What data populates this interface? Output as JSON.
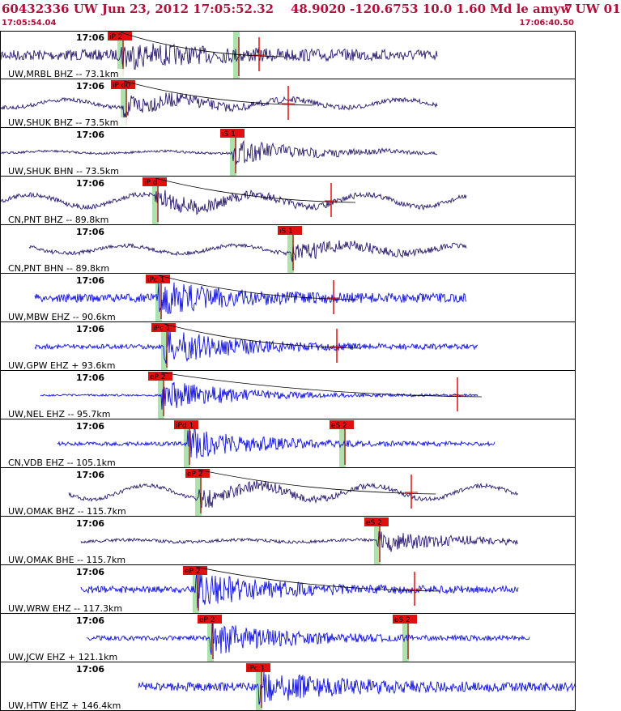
{
  "header": {
    "title": "60432336 UW Jun 23, 2012 17:05:52.32    48.9020 -120.6753 10.0 1.60 Md le amyw UW 01",
    "title_suffix": "7",
    "start_time": "17:05:54.04",
    "end_time": "17:06:40.50"
  },
  "colors": {
    "header_text": "#b0103a",
    "trace_broadband": "#2a1a6e",
    "trace_short_period": "#1010e0",
    "pick_label_bg": "#e01010",
    "pick_band": "#9fdc9f",
    "pick_line": "#b00000",
    "border": "#000000"
  },
  "traces": [
    {
      "label": "UW,MRBL BHZ -- 73.1km",
      "tick": "17:06",
      "kind": "bb",
      "start": 0.0,
      "end": 0.76,
      "noise": 0.28,
      "sig": 0.55,
      "wave": 0.0,
      "picks": [
        {
          "text": "iP 2",
          "pos": 0.21
        },
        {
          "text": "",
          "pos": 0.41
        }
      ],
      "marker": 0.45
    },
    {
      "label": "UW,SHUK BHZ -- 73.5km",
      "tick": "17:06",
      "kind": "bb",
      "start": 0.0,
      "end": 0.76,
      "noise": 0.1,
      "sig": 0.55,
      "wave": 0.35,
      "picks": [
        {
          "text": "iP d0",
          "pos": 0.215
        }
      ],
      "marker": 0.5
    },
    {
      "label": "UW,SHUK BHN -- 73.5km",
      "tick": "17:06",
      "kind": "bb",
      "start": 0.0,
      "end": 0.76,
      "noise": 0.06,
      "sig": 0.6,
      "wave": 0.1,
      "picks": [
        {
          "text": "iS 1",
          "pos": 0.405
        }
      ],
      "marker": -1
    },
    {
      "label": "CN,PNT BHZ -- 89.8km",
      "tick": "17:06",
      "kind": "bb",
      "start": 0.0,
      "end": 0.81,
      "noise": 0.12,
      "sig": 0.45,
      "wave": 0.55,
      "picks": [
        {
          "text": "iP d",
          "pos": 0.27
        }
      ],
      "marker": 0.575
    },
    {
      "label": "CN,PNT BHN -- 89.8km",
      "tick": "17:06",
      "kind": "bb",
      "start": 0.05,
      "end": 0.81,
      "noise": 0.1,
      "sig": 0.45,
      "wave": 0.35,
      "picks": [
        {
          "text": "iS 1",
          "pos": 0.505
        }
      ],
      "marker": -1
    },
    {
      "label": "UW,MBW EHZ -- 90.6km",
      "tick": "17:06",
      "kind": "sp",
      "start": 0.06,
      "end": 0.81,
      "noise": 0.22,
      "sig": 0.75,
      "wave": 0.0,
      "picks": [
        {
          "text": "iPc 1",
          "pos": 0.275
        }
      ],
      "marker": 0.58
    },
    {
      "label": "UW,GPW EHZ + 93.6km",
      "tick": "17:06",
      "kind": "sp",
      "start": 0.06,
      "end": 0.83,
      "noise": 0.12,
      "sig": 0.85,
      "wave": 0.0,
      "picks": [
        {
          "text": "iPc 1",
          "pos": 0.285
        }
      ],
      "marker": 0.585
    },
    {
      "label": "UW,NEL EHZ -- 95.7km",
      "tick": "17:06",
      "kind": "sp",
      "start": 0.07,
      "end": 0.83,
      "noise": 0.05,
      "sig": 0.8,
      "wave": 0.0,
      "picks": [
        {
          "text": "eP 2",
          "pos": 0.28
        }
      ],
      "marker": 0.795
    },
    {
      "label": "CN,VDB EHZ -- 105.1km",
      "tick": "17:06",
      "kind": "sp",
      "start": 0.1,
      "end": 0.86,
      "noise": 0.1,
      "sig": 0.75,
      "wave": 0.0,
      "picks": [
        {
          "text": "iPd 1",
          "pos": 0.325
        },
        {
          "text": "eS 2",
          "pos": 0.595
        }
      ],
      "marker": -1
    },
    {
      "label": "UW,OMAK BHZ -- 115.7km",
      "tick": "17:06",
      "kind": "bb",
      "start": 0.12,
      "end": 0.9,
      "noise": 0.1,
      "sig": 0.45,
      "wave": 0.6,
      "picks": [
        {
          "text": "eP 2",
          "pos": 0.345
        }
      ],
      "marker": 0.715
    },
    {
      "label": "UW,OMAK BHE -- 115.7km",
      "tick": "17:06",
      "kind": "bb",
      "start": 0.14,
      "end": 0.9,
      "noise": 0.08,
      "sig": 0.55,
      "wave": 0.1,
      "picks": [
        {
          "text": "eS 2",
          "pos": 0.655
        }
      ],
      "marker": -1
    },
    {
      "label": "UW,WRW EHZ -- 117.3km",
      "tick": "17:06",
      "kind": "sp",
      "start": 0.14,
      "end": 0.9,
      "noise": 0.18,
      "sig": 0.8,
      "wave": 0.0,
      "picks": [
        {
          "text": "eP 2",
          "pos": 0.34
        }
      ],
      "marker": 0.72
    },
    {
      "label": "UW,JCW EHZ + 121.1km",
      "tick": "17:06",
      "kind": "sp",
      "start": 0.15,
      "end": 0.92,
      "noise": 0.12,
      "sig": 0.8,
      "wave": 0.0,
      "picks": [
        {
          "text": "eP 2",
          "pos": 0.365
        },
        {
          "text": "eS 2",
          "pos": 0.705
        }
      ],
      "marker": -1
    },
    {
      "label": "UW,HTW EHZ + 146.4km",
      "tick": "17:06",
      "kind": "sp",
      "start": 0.24,
      "end": 1.0,
      "noise": 0.22,
      "sig": 0.75,
      "wave": 0.0,
      "picks": [
        {
          "text": "iPc 1",
          "pos": 0.45
        }
      ],
      "marker": -1
    }
  ]
}
